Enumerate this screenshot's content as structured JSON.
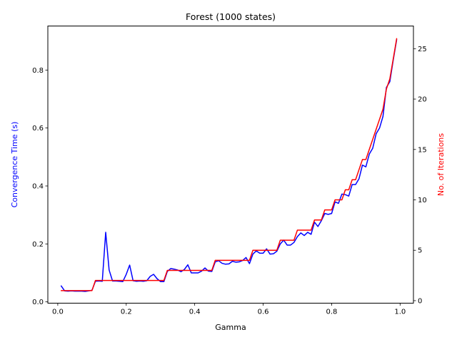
{
  "chart_data": {
    "type": "line",
    "title": "Forest (1000 states)",
    "xlabel": "Gamma",
    "ylabel_left": "Convergence Time (s)",
    "ylabel_right": "No. of Iterations",
    "xlim": [
      -0.029,
      1.039
    ],
    "ylim_left": [
      -0.0045,
      0.952
    ],
    "ylim_right": [
      -0.25,
      27.25
    ],
    "x_ticks": [
      0.0,
      0.2,
      0.4,
      0.6,
      0.8,
      1.0
    ],
    "x_tick_labels": [
      "0.0",
      "0.2",
      "0.4",
      "0.6",
      "0.8",
      "1.0"
    ],
    "y_left_ticks": [
      0.0,
      0.2,
      0.4,
      0.6,
      0.8
    ],
    "y_left_tick_labels": [
      "0.0",
      "0.2",
      "0.4",
      "0.6",
      "0.8"
    ],
    "y_right_ticks": [
      0,
      5,
      10,
      15,
      20,
      25
    ],
    "y_right_tick_labels": [
      "0",
      "5",
      "10",
      "15",
      "20",
      "25"
    ],
    "colors": {
      "time": "#0000ff",
      "iterations": "#ff0000",
      "axis": "#000000"
    },
    "grid": false,
    "series": [
      {
        "axis": "left",
        "x": [
          0.01,
          0.02,
          0.03,
          0.04,
          0.05,
          0.06,
          0.07,
          0.08,
          0.09,
          0.1,
          0.11,
          0.12,
          0.13,
          0.14,
          0.15,
          0.16,
          0.17,
          0.18,
          0.19,
          0.2,
          0.21,
          0.22,
          0.23,
          0.24,
          0.25,
          0.26,
          0.27,
          0.28,
          0.29,
          0.3,
          0.31,
          0.32,
          0.33,
          0.34,
          0.35,
          0.36,
          0.37,
          0.38,
          0.39,
          0.4,
          0.41,
          0.42,
          0.43,
          0.44,
          0.45,
          0.46,
          0.47,
          0.48,
          0.49,
          0.5,
          0.51,
          0.52,
          0.53,
          0.54,
          0.55,
          0.56,
          0.57,
          0.58,
          0.59,
          0.6,
          0.61,
          0.62,
          0.63,
          0.64,
          0.65,
          0.66,
          0.67,
          0.68,
          0.69,
          0.7,
          0.71,
          0.72,
          0.73,
          0.74,
          0.75,
          0.76,
          0.77,
          0.78,
          0.79,
          0.8,
          0.81,
          0.82,
          0.83,
          0.84,
          0.85,
          0.86,
          0.87,
          0.88,
          0.89,
          0.9,
          0.91,
          0.92,
          0.93,
          0.94,
          0.95,
          0.96,
          0.97,
          0.98,
          0.99
        ],
        "values": [
          0.055,
          0.038,
          0.037,
          0.038,
          0.037,
          0.037,
          0.037,
          0.036,
          0.038,
          0.04,
          0.071,
          0.072,
          0.071,
          0.24,
          0.11,
          0.072,
          0.072,
          0.071,
          0.07,
          0.095,
          0.127,
          0.073,
          0.071,
          0.072,
          0.071,
          0.073,
          0.088,
          0.095,
          0.08,
          0.07,
          0.07,
          0.105,
          0.115,
          0.113,
          0.11,
          0.104,
          0.112,
          0.128,
          0.1,
          0.1,
          0.1,
          0.106,
          0.117,
          0.106,
          0.105,
          0.138,
          0.142,
          0.133,
          0.13,
          0.131,
          0.14,
          0.137,
          0.138,
          0.143,
          0.153,
          0.132,
          0.165,
          0.176,
          0.168,
          0.168,
          0.183,
          0.165,
          0.166,
          0.175,
          0.2,
          0.213,
          0.196,
          0.196,
          0.205,
          0.225,
          0.238,
          0.229,
          0.24,
          0.233,
          0.275,
          0.26,
          0.28,
          0.305,
          0.302,
          0.305,
          0.345,
          0.34,
          0.372,
          0.37,
          0.365,
          0.405,
          0.405,
          0.425,
          0.472,
          0.466,
          0.51,
          0.53,
          0.58,
          0.6,
          0.64,
          0.74,
          0.76,
          0.835,
          0.905
        ]
      },
      {
        "axis": "right",
        "x": [
          0.01,
          0.02,
          0.03,
          0.04,
          0.05,
          0.06,
          0.07,
          0.08,
          0.09,
          0.1,
          0.11,
          0.12,
          0.13,
          0.14,
          0.15,
          0.16,
          0.17,
          0.18,
          0.19,
          0.2,
          0.21,
          0.22,
          0.23,
          0.24,
          0.25,
          0.26,
          0.27,
          0.28,
          0.29,
          0.3,
          0.31,
          0.32,
          0.33,
          0.34,
          0.35,
          0.36,
          0.37,
          0.38,
          0.39,
          0.4,
          0.41,
          0.42,
          0.43,
          0.44,
          0.45,
          0.46,
          0.47,
          0.48,
          0.49,
          0.5,
          0.51,
          0.52,
          0.53,
          0.54,
          0.55,
          0.56,
          0.57,
          0.58,
          0.59,
          0.6,
          0.61,
          0.62,
          0.63,
          0.64,
          0.65,
          0.66,
          0.67,
          0.68,
          0.69,
          0.7,
          0.71,
          0.72,
          0.73,
          0.74,
          0.75,
          0.76,
          0.77,
          0.78,
          0.79,
          0.8,
          0.81,
          0.82,
          0.83,
          0.84,
          0.85,
          0.86,
          0.87,
          0.88,
          0.89,
          0.9,
          0.91,
          0.92,
          0.93,
          0.94,
          0.95,
          0.96,
          0.97,
          0.98,
          0.99
        ],
        "values": [
          1,
          1,
          1,
          1,
          1,
          1,
          1,
          1,
          1,
          1,
          2,
          2,
          2,
          2,
          2,
          2,
          2,
          2,
          2,
          2,
          2,
          2,
          2,
          2,
          2,
          2,
          2,
          2,
          2,
          2,
          2,
          3,
          3,
          3,
          3,
          3,
          3,
          3,
          3,
          3,
          3,
          3,
          3,
          3,
          3,
          4,
          4,
          4,
          4,
          4,
          4,
          4,
          4,
          4,
          4,
          4,
          5,
          5,
          5,
          5,
          5,
          5,
          5,
          5,
          6,
          6,
          6,
          6,
          6,
          7,
          7,
          7,
          7,
          7,
          8,
          8,
          8,
          9,
          9,
          9,
          10,
          10,
          10,
          11,
          11,
          12,
          12,
          13,
          14,
          14,
          15,
          16,
          17,
          18,
          19,
          21,
          22,
          24,
          26
        ]
      }
    ]
  }
}
